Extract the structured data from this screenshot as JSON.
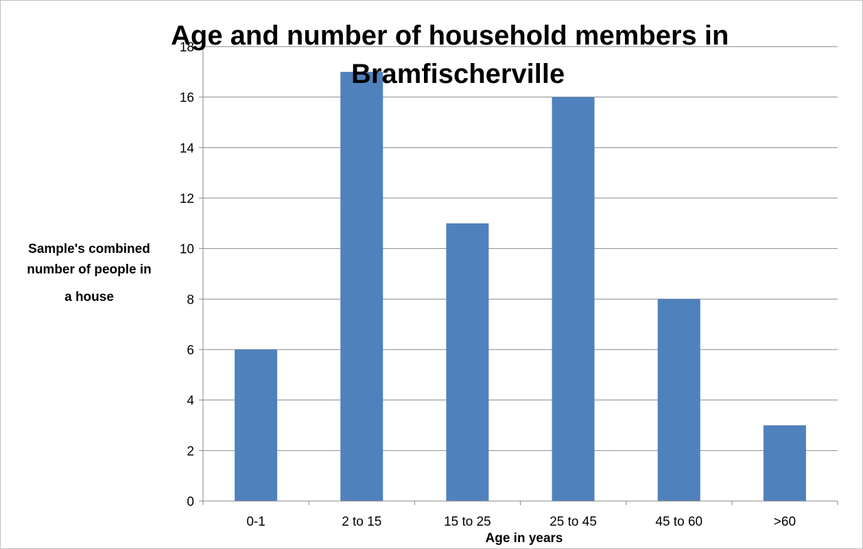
{
  "chart_data": {
    "type": "bar",
    "title_lines": [
      "Age and number of household members in",
      "Bramfischerville"
    ],
    "xlabel": "Age in years",
    "ylabel_lines": [
      "Sample's combined",
      "number of people in",
      "a house"
    ],
    "categories": [
      "0-1",
      "2 to 15",
      "15 to 25",
      "25 to 45",
      "45 to 60",
      ">60"
    ],
    "values": [
      6,
      17,
      11,
      16,
      8,
      3
    ],
    "ylim": [
      0,
      18
    ],
    "yticks": [
      "0",
      "2",
      "4",
      "6",
      "8",
      "10",
      "12",
      "14",
      "16",
      "18"
    ],
    "grid": true,
    "legend": "none",
    "bar_color": "#4f81bd",
    "grid_color": "#868686"
  }
}
